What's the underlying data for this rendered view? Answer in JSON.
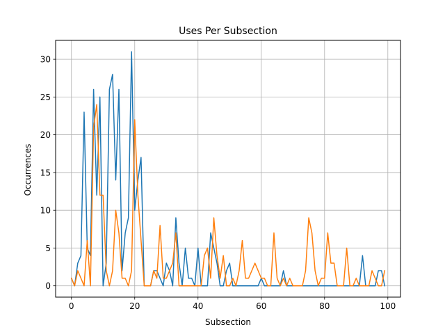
{
  "chart_data": {
    "type": "line",
    "title": "Uses Per Subsection",
    "xlabel": "Subsection",
    "ylabel": "Occurrences",
    "xlim": [
      -5,
      104
    ],
    "ylim": [
      -1.5,
      32.5
    ],
    "xticks": [
      0,
      20,
      40,
      60,
      80,
      100
    ],
    "yticks": [
      0,
      5,
      10,
      15,
      20,
      25,
      30
    ],
    "grid": true,
    "legend": "none",
    "x_start": 0,
    "series": [
      {
        "color": "#1f77b4",
        "values": [
          1,
          0,
          3,
          4,
          23,
          5,
          4,
          26,
          12,
          25,
          0,
          3,
          26,
          28,
          14,
          26,
          2,
          7,
          9,
          31,
          10,
          14,
          17,
          0,
          0,
          0,
          2,
          2,
          1,
          0,
          3,
          2,
          0,
          9,
          3,
          0,
          5,
          1,
          1,
          0,
          5,
          0,
          0,
          0,
          7,
          5,
          3,
          0,
          0,
          2,
          3,
          0,
          0,
          0,
          0,
          0,
          0,
          0,
          0,
          0,
          1,
          0,
          0,
          0,
          0,
          0,
          0,
          2,
          0,
          0,
          0,
          0,
          0,
          0,
          0,
          0,
          0,
          0,
          0,
          0,
          0,
          0,
          0,
          0,
          0,
          0,
          0,
          0,
          0,
          0,
          0,
          0,
          4,
          0,
          0,
          0,
          0,
          2,
          2,
          0
        ]
      },
      {
        "color": "#ff7f0e",
        "values": [
          1,
          0,
          2,
          1,
          0,
          6,
          0,
          21,
          24,
          12,
          12,
          2,
          0,
          2,
          10,
          7,
          1,
          1,
          0,
          2,
          22,
          12,
          6,
          0,
          0,
          0,
          2,
          1,
          8,
          1,
          1,
          2,
          3,
          7,
          0,
          0,
          0,
          0,
          0,
          0,
          0,
          0,
          4,
          5,
          1,
          9,
          4,
          1,
          4,
          0,
          0,
          1,
          0,
          2,
          6,
          1,
          1,
          2,
          3,
          2,
          1,
          1,
          0,
          0,
          7,
          1,
          0,
          1,
          0,
          1,
          0,
          0,
          0,
          0,
          2,
          9,
          7,
          2,
          0,
          1,
          1,
          7,
          3,
          3,
          0,
          0,
          0,
          5,
          0,
          0,
          1,
          0,
          0,
          0,
          0,
          2,
          1,
          0,
          0,
          2
        ]
      }
    ]
  }
}
